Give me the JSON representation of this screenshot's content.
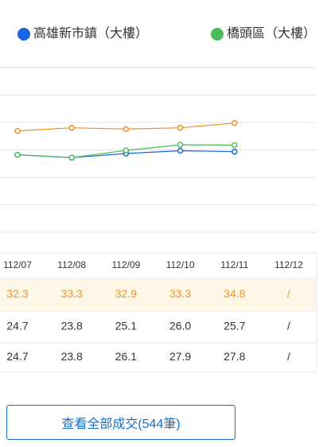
{
  "chart_data": {
    "type": "line",
    "categories": [
      "112/07",
      "112/08",
      "112/09",
      "112/10",
      "112/11",
      "112/12"
    ],
    "ylim": [
      0,
      52.5
    ],
    "series": [
      {
        "color": "#f0901e",
        "values": [
          32.3,
          33.3,
          32.9,
          33.3,
          34.8,
          null
        ],
        "value_labels": [
          "32.3",
          "33.3",
          "32.9",
          "33.3",
          "34.8",
          "/"
        ]
      },
      {
        "name": "高雄新市鎮（大樓）",
        "color": "#1565e0",
        "values": [
          24.7,
          23.8,
          25.1,
          26.0,
          25.7,
          null
        ],
        "value_labels": [
          "24.7",
          "23.8",
          "25.1",
          "26.0",
          "25.7",
          "/"
        ]
      },
      {
        "name": "橋頭區（大樓）",
        "color": "#4cbb5a",
        "values": [
          24.7,
          23.8,
          26.1,
          27.9,
          27.8,
          null
        ],
        "value_labels": [
          "24.7",
          "23.8",
          "26.1",
          "27.9",
          "27.8",
          "/"
        ]
      }
    ]
  },
  "button": {
    "label": "查看全部成交(544筆)"
  }
}
